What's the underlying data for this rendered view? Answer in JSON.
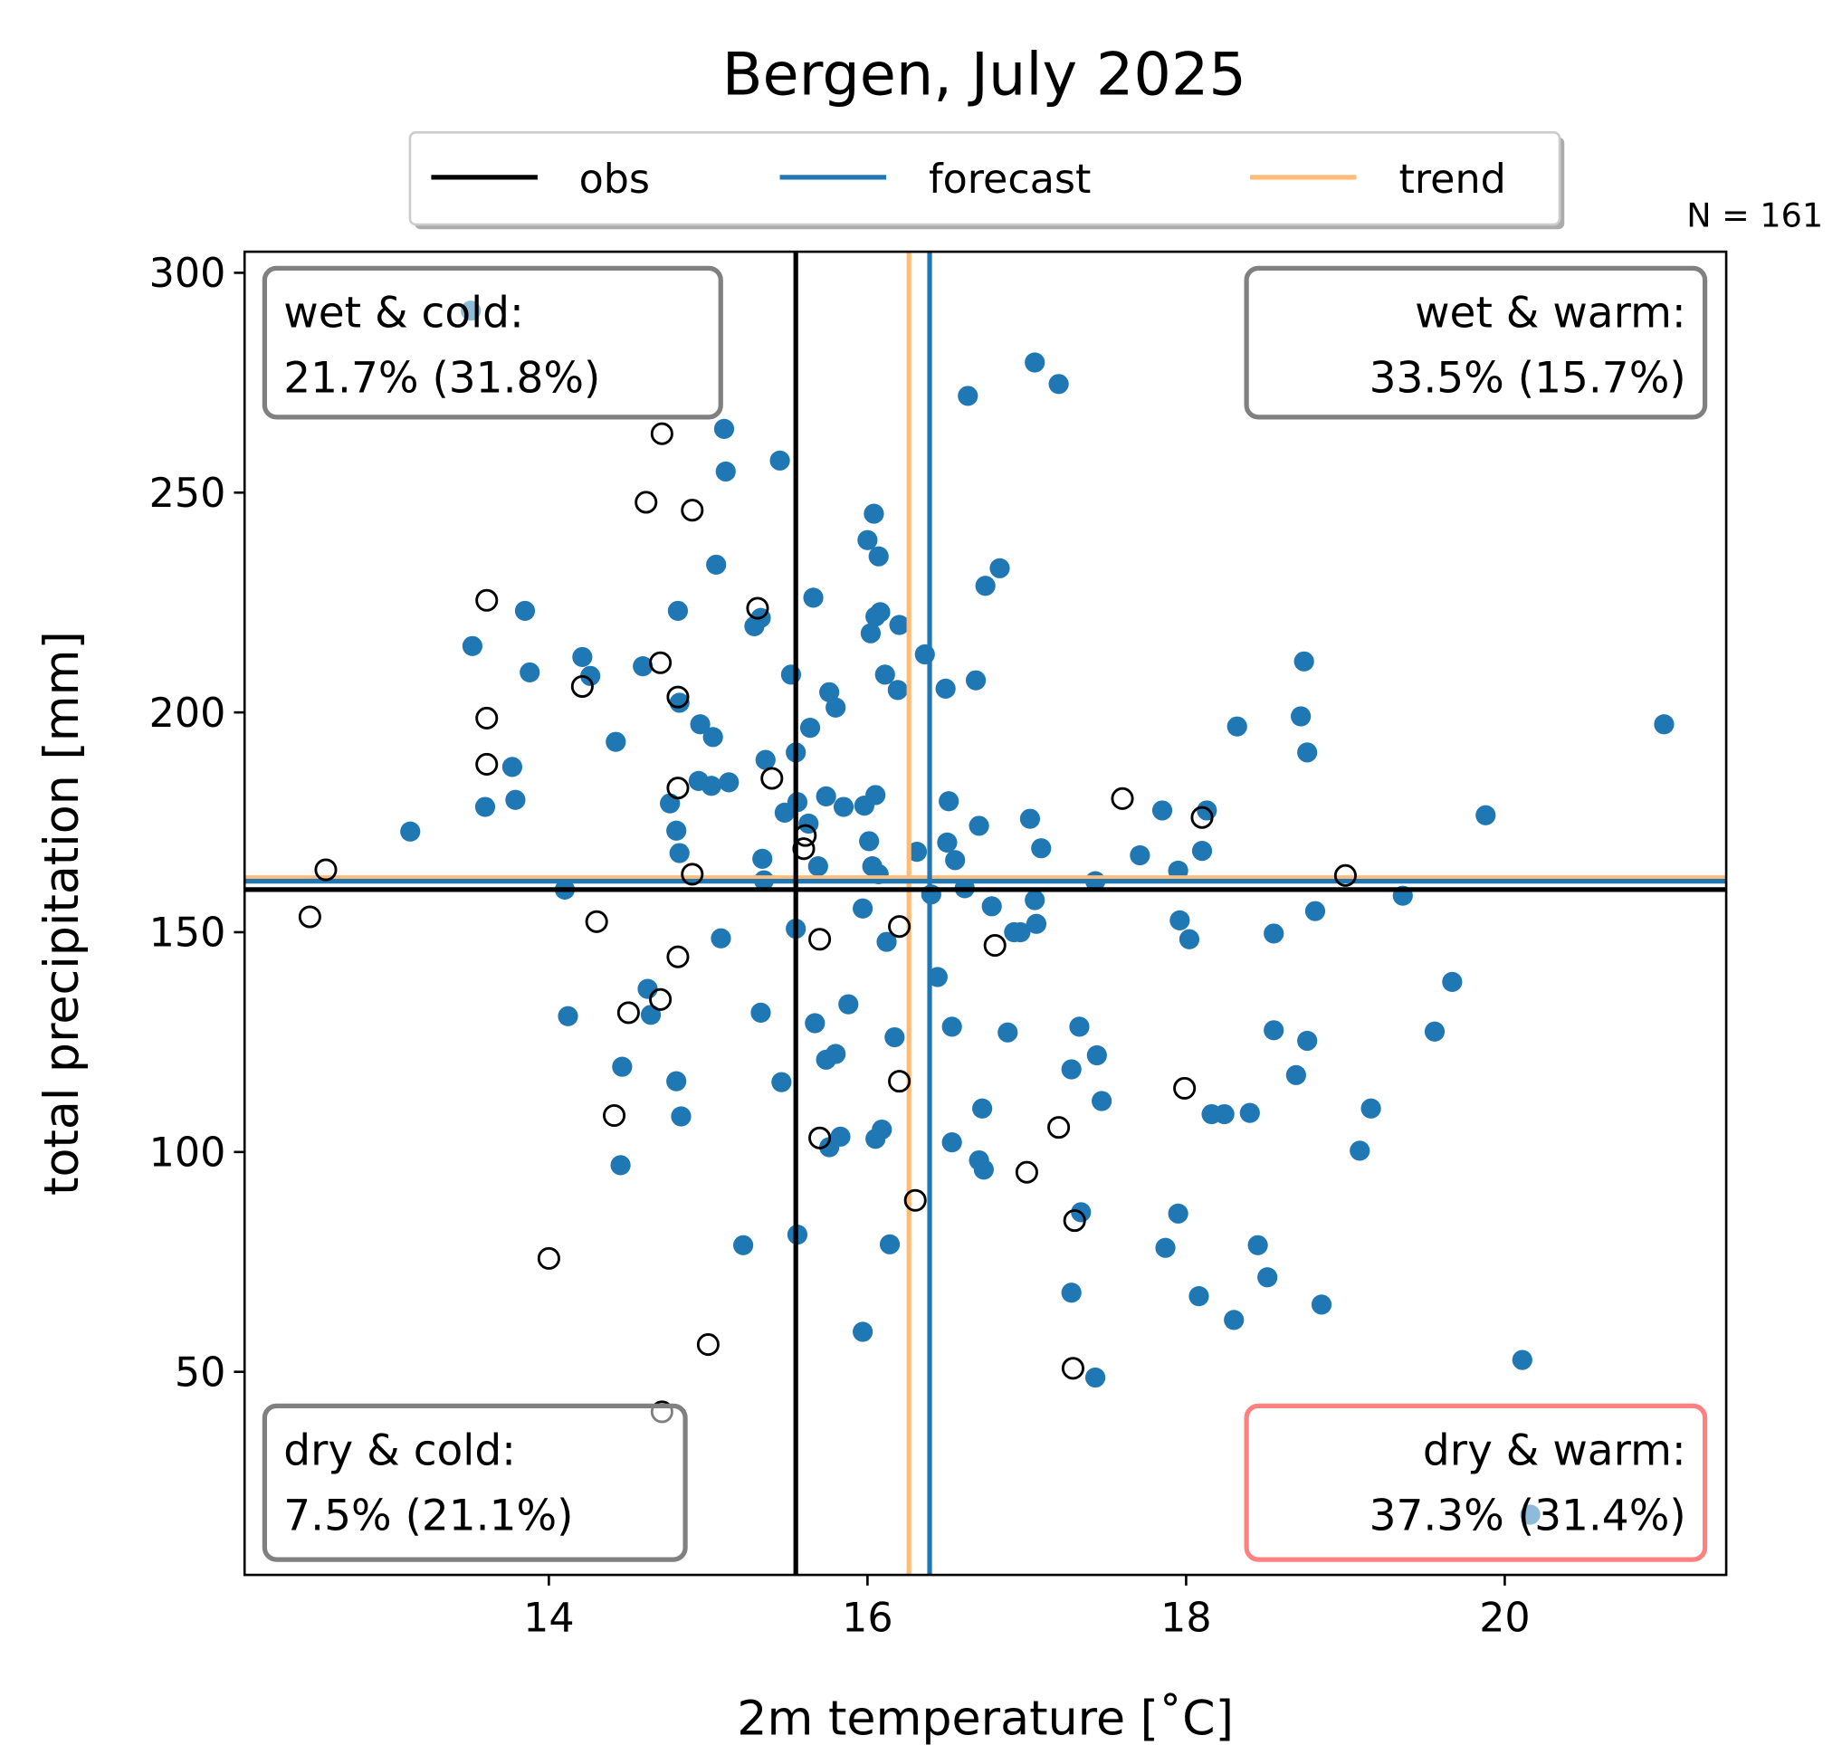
{
  "chart_data": {
    "type": "scatter",
    "title": "Bergen, July 2025",
    "xlabel": "2m temperature [˚C]",
    "ylabel": "total precipitation [mm]",
    "xlim": [
      12.09,
      21.39
    ],
    "ylim": [
      3.8,
      304.8
    ],
    "xticks": [
      14,
      16,
      18,
      20
    ],
    "yticks": [
      50,
      100,
      150,
      200,
      250,
      300
    ],
    "n_label": "N = 161",
    "legend": {
      "placement": "top-center",
      "entries": [
        {
          "label": "obs",
          "color": "#000000"
        },
        {
          "label": "forecast",
          "color": "#1f77b4"
        },
        {
          "label": "trend",
          "color": "#ffbb78"
        }
      ]
    },
    "reference_lines": {
      "obs": {
        "x": 15.55,
        "y": 159.7,
        "color": "#000000"
      },
      "forecast": {
        "x": 16.39,
        "y": 161.6,
        "color": "#1f77b4"
      },
      "trend": {
        "x": 16.26,
        "y": 162.4,
        "color": "#ffbb78"
      }
    },
    "quadrants": [
      {
        "id": "wet-cold",
        "line1": "wet & cold:",
        "line2": "21.7% (31.8%)",
        "position": "top-left",
        "border": "#808080"
      },
      {
        "id": "wet-warm",
        "line1": "wet & warm:",
        "line2": "33.5% (15.7%)",
        "position": "top-right",
        "border": "#808080"
      },
      {
        "id": "dry-cold",
        "line1": "dry & cold:",
        "line2": "7.5% (21.1%)",
        "position": "bottom-left",
        "border": "#808080"
      },
      {
        "id": "dry-warm",
        "line1": "dry & warm:",
        "line2": "37.3% (31.4%)",
        "position": "bottom-right",
        "border": "#ff8080"
      }
    ],
    "series": [
      {
        "name": "forecast",
        "marker": "filled-circle",
        "color": "#1f77b4",
        "points": [
          [
            13.51,
            291.4
          ],
          [
            17.05,
            279.6
          ],
          [
            17.2,
            274.7
          ],
          [
            16.63,
            272
          ],
          [
            15.1,
            264.5
          ],
          [
            15.11,
            254.8
          ],
          [
            15.45,
            257.3
          ],
          [
            16.04,
            245.2
          ],
          [
            16.0,
            239.2
          ],
          [
            16.07,
            235.5
          ],
          [
            15.05,
            233.6
          ],
          [
            16.83,
            232.8
          ],
          [
            16.74,
            228.8
          ],
          [
            15.66,
            226.1
          ],
          [
            13.85,
            223.1
          ],
          [
            14.81,
            223.1
          ],
          [
            16.08,
            222.8
          ],
          [
            16.05,
            221.8
          ],
          [
            15.33,
            221.5
          ],
          [
            15.29,
            219.6
          ],
          [
            16.2,
            219.9
          ],
          [
            16.02,
            218
          ],
          [
            13.52,
            215.1
          ],
          [
            14.21,
            212.6
          ],
          [
            18.74,
            211.6
          ],
          [
            14.59,
            210.5
          ],
          [
            13.88,
            209.1
          ],
          [
            14.26,
            208.3
          ],
          [
            15.52,
            208.6
          ],
          [
            16.11,
            208.6
          ],
          [
            16.68,
            207.3
          ],
          [
            16.36,
            213.2
          ],
          [
            16.49,
            205.4
          ],
          [
            16.19,
            205.1
          ],
          [
            15.76,
            204.6
          ],
          [
            14.82,
            202.2
          ],
          [
            18.72,
            199.1
          ],
          [
            15.8,
            201.1
          ],
          [
            14.95,
            197.3
          ],
          [
            21.0,
            197.3
          ],
          [
            18.32,
            196.8
          ],
          [
            15.64,
            196.5
          ],
          [
            15.03,
            194.4
          ],
          [
            14.42,
            193.3
          ],
          [
            18.76,
            190.9
          ],
          [
            15.55,
            190.9
          ],
          [
            15.36,
            189.2
          ],
          [
            13.77,
            187.6
          ],
          [
            14.94,
            184.4
          ],
          [
            15.02,
            183.3
          ],
          [
            15.13,
            184.1
          ],
          [
            16.05,
            181.2
          ],
          [
            15.74,
            180.9
          ],
          [
            15.56,
            179.6
          ],
          [
            15.98,
            178.8
          ],
          [
            15.85,
            178.5
          ],
          [
            14.76,
            179.3
          ],
          [
            16.51,
            179.8
          ],
          [
            13.79,
            180.1
          ],
          [
            13.6,
            178.5
          ],
          [
            17.85,
            177.7
          ],
          [
            18.13,
            177.7
          ],
          [
            15.48,
            177.2
          ],
          [
            19.88,
            176.6
          ],
          [
            17.02,
            175.8
          ],
          [
            15.63,
            174.7
          ],
          [
            16.7,
            174.2
          ],
          [
            14.8,
            173.1
          ],
          [
            13.13,
            172.9
          ],
          [
            16.5,
            170.4
          ],
          [
            16.01,
            170.7
          ],
          [
            17.09,
            169.1
          ],
          [
            18.1,
            168.5
          ],
          [
            14.82,
            168
          ],
          [
            16.31,
            168.3
          ],
          [
            17.71,
            167.5
          ],
          [
            16.55,
            166.4
          ],
          [
            15.34,
            166.7
          ],
          [
            16.03,
            165
          ],
          [
            16.07,
            163.2
          ],
          [
            15.69,
            165
          ],
          [
            17.95,
            164
          ],
          [
            16.61,
            160
          ],
          [
            17.43,
            161.6
          ],
          [
            15.35,
            161.8
          ],
          [
            14.1,
            159.7
          ],
          [
            16.4,
            158.6
          ],
          [
            17.05,
            157.3
          ],
          [
            19.36,
            158.3
          ],
          [
            15.97,
            155.4
          ],
          [
            16.78,
            155.9
          ],
          [
            18.81,
            154.8
          ],
          [
            17.96,
            152.7
          ],
          [
            17.06,
            151.9
          ],
          [
            15.55,
            150.8
          ],
          [
            16.92,
            150
          ],
          [
            16.96,
            150
          ],
          [
            18.55,
            149.7
          ],
          [
            18.02,
            148.4
          ],
          [
            15.08,
            148.6
          ],
          [
            16.12,
            147.8
          ],
          [
            16.44,
            139.8
          ],
          [
            19.67,
            138.7
          ],
          [
            14.62,
            137.1
          ],
          [
            14.64,
            131.2
          ],
          [
            14.12,
            130.9
          ],
          [
            15.33,
            131.7
          ],
          [
            15.88,
            133.6
          ],
          [
            15.67,
            129.3
          ],
          [
            16.53,
            128.5
          ],
          [
            17.33,
            128.5
          ],
          [
            19.56,
            127.4
          ],
          [
            18.55,
            127.7
          ],
          [
            16.88,
            127.2
          ],
          [
            16.17,
            126.1
          ],
          [
            18.76,
            125.3
          ],
          [
            15.8,
            122.3
          ],
          [
            17.44,
            122
          ],
          [
            15.74,
            121
          ],
          [
            17.28,
            118.8
          ],
          [
            14.46,
            119.4
          ],
          [
            18.69,
            117.5
          ],
          [
            15.46,
            115.9
          ],
          [
            14.8,
            116.1
          ],
          [
            17.47,
            111.6
          ],
          [
            16.72,
            109.9
          ],
          [
            19.16,
            109.9
          ],
          [
            18.16,
            108.6
          ],
          [
            18.24,
            108.6
          ],
          [
            18.4,
            108.9
          ],
          [
            14.83,
            108.1
          ],
          [
            16.09,
            105.1
          ],
          [
            16.05,
            103
          ],
          [
            15.83,
            103.5
          ],
          [
            15.76,
            101.1
          ],
          [
            16.53,
            102.2
          ],
          [
            19.09,
            100.3
          ],
          [
            16.7,
            98.1
          ],
          [
            16.73,
            96
          ],
          [
            14.45,
            97
          ],
          [
            17.34,
            86.3
          ],
          [
            17.95,
            86
          ],
          [
            15.56,
            81.2
          ],
          [
            15.22,
            78.8
          ],
          [
            16.14,
            79
          ],
          [
            17.87,
            78.2
          ],
          [
            18.45,
            78.8
          ],
          [
            18.51,
            71.5
          ],
          [
            17.28,
            68
          ],
          [
            18.08,
            67.2
          ],
          [
            18.85,
            65.3
          ],
          [
            18.3,
            61.8
          ],
          [
            15.97,
            59.1
          ],
          [
            20.11,
            52.7
          ],
          [
            17.43,
            48.7
          ],
          [
            20.16,
            17.5
          ]
        ]
      },
      {
        "name": "obs",
        "marker": "open-circle",
        "color": "#000000",
        "points": [
          [
            12.6,
            164.2
          ],
          [
            12.5,
            153.5
          ],
          [
            14.71,
            263.4
          ],
          [
            14.61,
            247.8
          ],
          [
            14.9,
            246
          ],
          [
            13.61,
            225.5
          ],
          [
            15.31,
            223.7
          ],
          [
            14.7,
            211.3
          ],
          [
            14.21,
            205.9
          ],
          [
            14.81,
            203.5
          ],
          [
            13.61,
            198.7
          ],
          [
            13.61,
            188.2
          ],
          [
            15.4,
            185
          ],
          [
            14.81,
            182.8
          ],
          [
            15.61,
            172
          ],
          [
            15.6,
            169
          ],
          [
            14.9,
            163.2
          ],
          [
            14.3,
            152.4
          ],
          [
            14.81,
            144.4
          ],
          [
            15.7,
            148.4
          ],
          [
            16.2,
            151.3
          ],
          [
            16.8,
            147
          ],
          [
            14.7,
            134.7
          ],
          [
            14.5,
            131.7
          ],
          [
            16.2,
            116.1
          ],
          [
            17.99,
            114.5
          ],
          [
            14.41,
            108.3
          ],
          [
            15.7,
            103.2
          ],
          [
            17.2,
            105.6
          ],
          [
            17.0,
            95.4
          ],
          [
            16.3,
            89
          ],
          [
            17.3,
            84.4
          ],
          [
            14.0,
            75.8
          ],
          [
            15.0,
            56.2
          ],
          [
            17.29,
            50.8
          ],
          [
            14.71,
            40.9
          ],
          [
            17.6,
            180.4
          ],
          [
            18.1,
            176.1
          ],
          [
            19.0,
            162.9
          ]
        ]
      }
    ]
  }
}
